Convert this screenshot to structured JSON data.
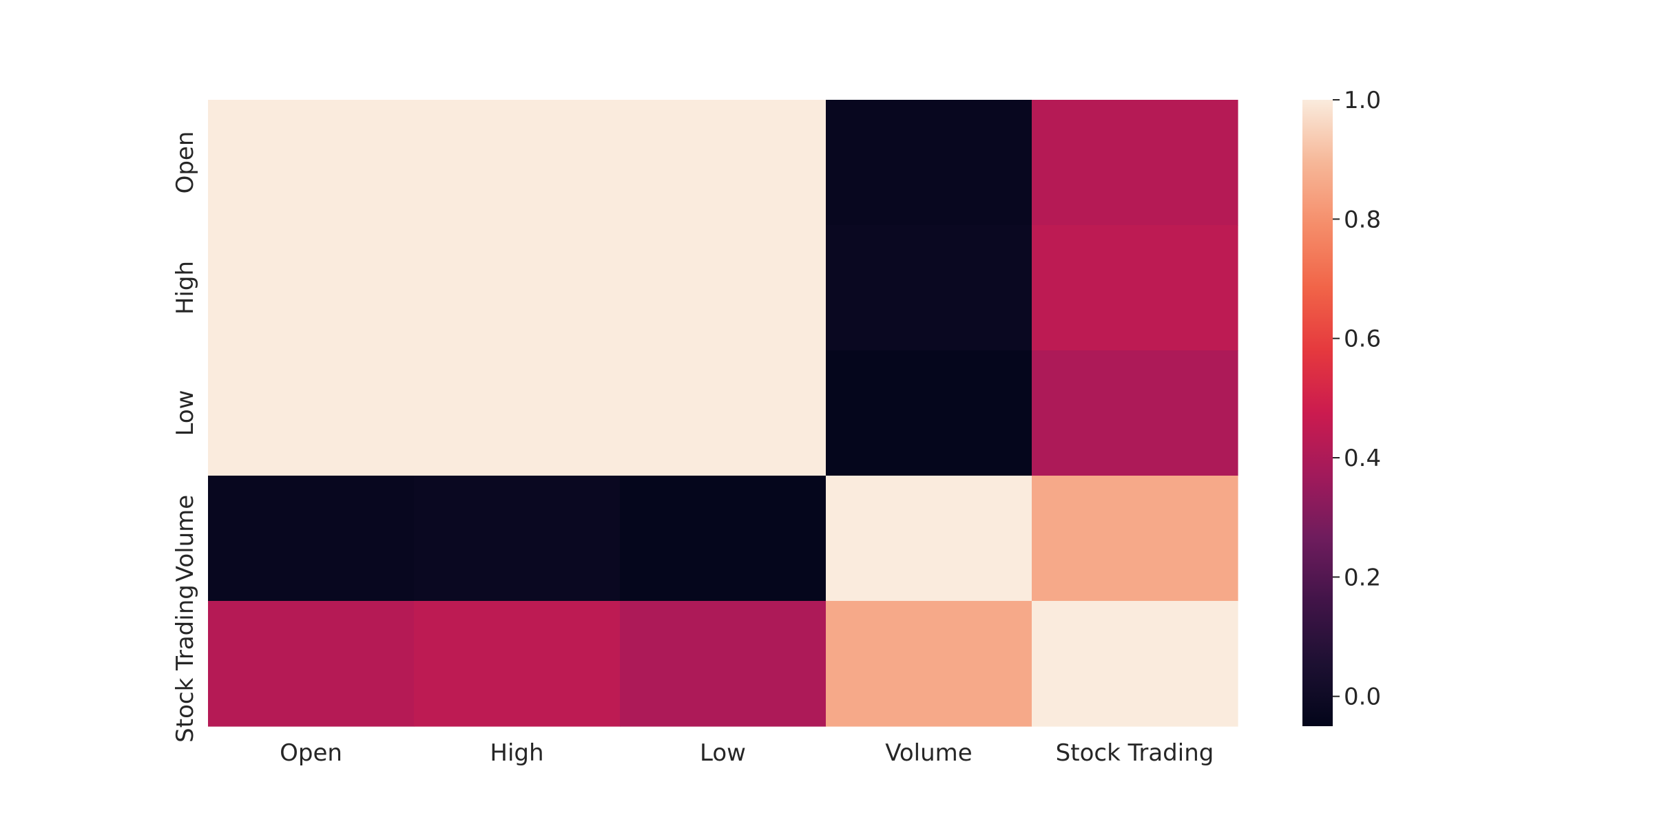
{
  "chart_data": {
    "type": "heatmap",
    "title": "",
    "xlabel": "",
    "ylabel": "",
    "x_categories": [
      "Open",
      "High",
      "Low",
      "Volume",
      "Stock Trading"
    ],
    "y_categories": [
      "Open",
      "High",
      "Low",
      "Volume",
      "Stock Trading"
    ],
    "values": [
      [
        1.0,
        1.0,
        1.0,
        -0.03,
        0.42
      ],
      [
        1.0,
        1.0,
        1.0,
        -0.02,
        0.44
      ],
      [
        1.0,
        1.0,
        1.0,
        -0.04,
        0.4
      ],
      [
        -0.03,
        -0.02,
        -0.04,
        1.0,
        0.86
      ],
      [
        0.42,
        0.44,
        0.4,
        0.86,
        1.0
      ]
    ],
    "color_range": [
      -0.05,
      1.0
    ],
    "colorbar": {
      "ticks": [
        0.0,
        0.2,
        0.4,
        0.6,
        0.8,
        1.0
      ],
      "tick_labels": [
        "0.0",
        "0.2",
        "0.4",
        "0.6",
        "0.8",
        "1.0"
      ],
      "colormap": "rocket"
    },
    "grid": false,
    "legend": "colorbar-right"
  }
}
